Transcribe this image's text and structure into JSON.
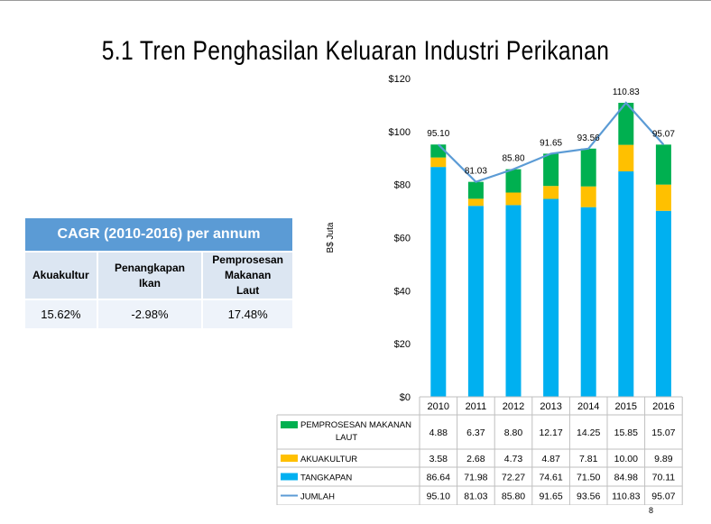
{
  "slide": {
    "title": "5.1 Tren Penghasilan Keluaran Industri Perikanan",
    "page_number": "8"
  },
  "cagr_table": {
    "title": "CAGR (2010-2016) per annum",
    "columns": [
      "Akuakultur",
      "Penangkapan Ikan",
      "Pemprosesan Makanan Laut"
    ],
    "values": [
      "15.62%",
      "-2.98%",
      "17.48%"
    ]
  },
  "chart_data": {
    "type": "bar",
    "stacked": true,
    "categories": [
      "2010",
      "2011",
      "2012",
      "2013",
      "2014",
      "2015",
      "2016"
    ],
    "series": [
      {
        "name": "TANGKAPAN",
        "kind": "bar",
        "color": "#00b0f0",
        "values": [
          86.64,
          71.98,
          72.27,
          74.61,
          71.5,
          84.98,
          70.11
        ]
      },
      {
        "name": "AKUAKULTUR",
        "kind": "bar",
        "color": "#ffc000",
        "values": [
          3.58,
          2.68,
          4.73,
          4.87,
          7.81,
          10.0,
          9.89
        ]
      },
      {
        "name": "PEMPROSESAN MAKANAN LAUT",
        "kind": "bar",
        "color": "#00b050",
        "values": [
          4.88,
          6.37,
          8.8,
          12.17,
          14.25,
          15.85,
          15.07
        ]
      },
      {
        "name": "JUMLAH",
        "kind": "line",
        "color": "#5b9bd5",
        "values": [
          95.1,
          81.03,
          85.8,
          91.65,
          93.56,
          110.83,
          95.07
        ]
      }
    ],
    "total_labels": [
      "95.10",
      "81.03",
      "85.80",
      "91.65",
      "93.56",
      "110.83",
      "95.07"
    ],
    "data_table": {
      "legend_labels": [
        "PEMPROSESAN MAKANAN LAUT",
        "AKUAKULTUR",
        "TANGKAPAN",
        "JUMLAH"
      ],
      "rows": [
        [
          "4.88",
          "6.37",
          "8.80",
          "12.17",
          "14.25",
          "15.85",
          "15.07"
        ],
        [
          "3.58",
          "2.68",
          "4.73",
          "4.87",
          "7.81",
          "10.00",
          "9.89"
        ],
        [
          "86.64",
          "71.98",
          "72.27",
          "74.61",
          "71.50",
          "84.98",
          "70.11"
        ],
        [
          "95.10",
          "81.03",
          "85.80",
          "91.65",
          "93.56",
          "110.83",
          "95.07"
        ]
      ]
    },
    "ylabel": "B$ Juta",
    "ylim": [
      0,
      120
    ],
    "yticks": [
      "$0",
      "$20",
      "$40",
      "$60",
      "$80",
      "$100",
      "$120"
    ],
    "grid": false
  }
}
